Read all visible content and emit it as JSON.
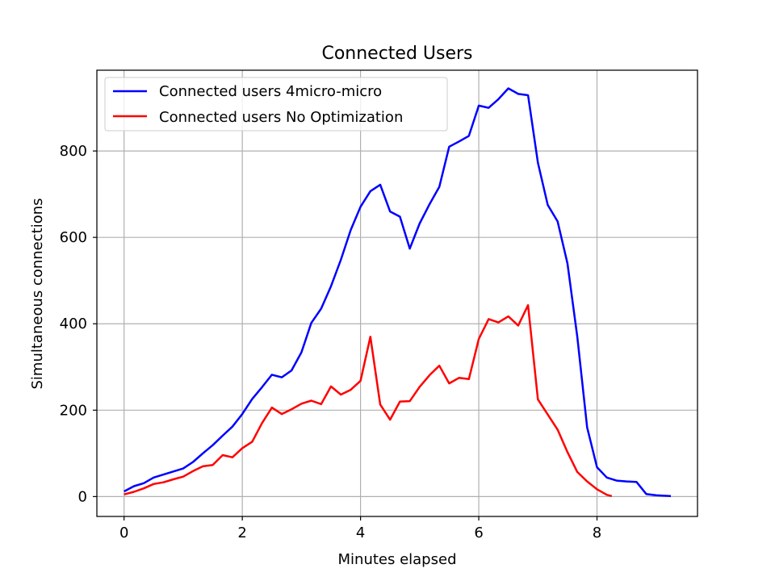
{
  "chart_data": {
    "type": "line",
    "title": "Connected Users",
    "xlabel": "Minutes elapsed",
    "ylabel": "Simultaneous connections",
    "xlim": [
      -0.46,
      9.7
    ],
    "ylim": [
      -46,
      987
    ],
    "xticks": [
      0,
      2,
      4,
      6,
      8
    ],
    "yticks": [
      0,
      200,
      400,
      600,
      800
    ],
    "grid": true,
    "legend_position": "upper-left",
    "series": [
      {
        "name": "Connected users 4micro-micro",
        "color": "#0000ff",
        "x": [
          0,
          0.167,
          0.333,
          0.5,
          0.667,
          0.833,
          1.0,
          1.167,
          1.333,
          1.5,
          1.667,
          1.833,
          2.0,
          2.167,
          2.333,
          2.5,
          2.667,
          2.833,
          3.0,
          3.167,
          3.333,
          3.5,
          3.667,
          3.833,
          4.0,
          4.167,
          4.333,
          4.5,
          4.667,
          4.833,
          5.0,
          5.167,
          5.333,
          5.5,
          5.667,
          5.833,
          6.0,
          6.167,
          6.333,
          6.5,
          6.667,
          6.833,
          7.0,
          7.167,
          7.333,
          7.5,
          7.667,
          7.833,
          8.0,
          8.167,
          8.333,
          8.5,
          8.667,
          8.833,
          9.0,
          9.25
        ],
        "y": [
          12,
          24,
          31,
          44,
          51,
          58,
          65,
          80,
          100,
          119,
          141,
          162,
          191,
          226,
          253,
          282,
          276,
          292,
          334,
          402,
          435,
          487,
          548,
          617,
          671,
          707,
          722,
          660,
          648,
          574,
          632,
          677,
          717,
          810,
          822,
          835,
          905,
          900,
          920,
          945,
          932,
          929,
          773,
          675,
          637,
          540,
          370,
          160,
          68,
          44,
          37,
          35,
          34,
          6,
          3,
          1
        ]
      },
      {
        "name": "Connected users No Optimization",
        "color": "#ff0000",
        "x": [
          0,
          0.167,
          0.333,
          0.5,
          0.667,
          0.833,
          1.0,
          1.167,
          1.333,
          1.5,
          1.667,
          1.833,
          2.0,
          2.167,
          2.333,
          2.5,
          2.667,
          2.833,
          3.0,
          3.167,
          3.333,
          3.5,
          3.667,
          3.833,
          4.0,
          4.167,
          4.333,
          4.5,
          4.667,
          4.833,
          5.0,
          5.167,
          5.333,
          5.5,
          5.667,
          5.833,
          6.0,
          6.167,
          6.333,
          6.5,
          6.667,
          6.833,
          7.0,
          7.167,
          7.333,
          7.5,
          7.667,
          7.833,
          8.0,
          8.167,
          8.25
        ],
        "y": [
          5,
          11,
          19,
          29,
          33,
          40,
          46,
          59,
          70,
          73,
          96,
          91,
          112,
          127,
          170,
          206,
          191,
          202,
          215,
          222,
          214,
          255,
          236,
          247,
          268,
          370,
          213,
          178,
          220,
          221,
          254,
          281,
          303,
          262,
          275,
          272,
          365,
          411,
          403,
          417,
          396,
          443,
          225,
          190,
          155,
          103,
          57,
          35,
          17,
          4,
          1
        ]
      }
    ]
  }
}
